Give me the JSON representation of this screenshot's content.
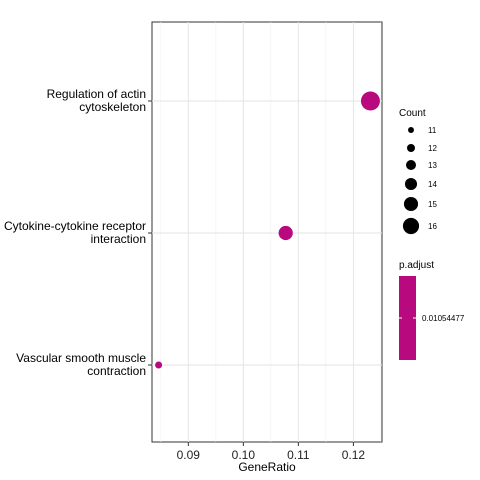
{
  "chart_data": {
    "type": "scatter",
    "xlabel": "GeneRatio",
    "ylabel": "",
    "xlim": [
      0.0834,
      0.1252
    ],
    "xticks": [
      0.09,
      0.1,
      0.11,
      0.12
    ],
    "xtick_labels": [
      "0.09",
      "0.10",
      "0.11",
      "0.12"
    ],
    "grid": true,
    "categories": [
      "Regulation of actin cytoskeleton",
      "Cytokine-cytokine receptor interaction",
      "Vascular smooth muscle contraction"
    ],
    "category_lines": [
      [
        "Regulation of actin",
        "cytoskeleton"
      ],
      [
        "Cytokine-cytokine receptor",
        "interaction"
      ],
      [
        "Vascular smooth muscle",
        "contraction"
      ]
    ],
    "points": [
      {
        "term": "Regulation of actin cytoskeleton",
        "gene_ratio": 0.1231,
        "count": 16,
        "p_adjust": 0.01054477
      },
      {
        "term": "Cytokine-cytokine receptor interaction",
        "gene_ratio": 0.1077,
        "count": 14,
        "p_adjust": 0.01054477
      },
      {
        "term": "Vascular smooth muscle contraction",
        "gene_ratio": 0.0846,
        "count": 11,
        "p_adjust": 0.01054477
      }
    ],
    "point_color": "#b8097f",
    "size_legend": {
      "title": "Count",
      "values": [
        11,
        12,
        13,
        14,
        15,
        16
      ],
      "labels": [
        "11",
        "12",
        "13",
        "14",
        "15",
        "16"
      ]
    },
    "color_legend": {
      "title": "p.adjust",
      "labels": [
        "0.01054477"
      ],
      "color": "#b8097f"
    }
  }
}
